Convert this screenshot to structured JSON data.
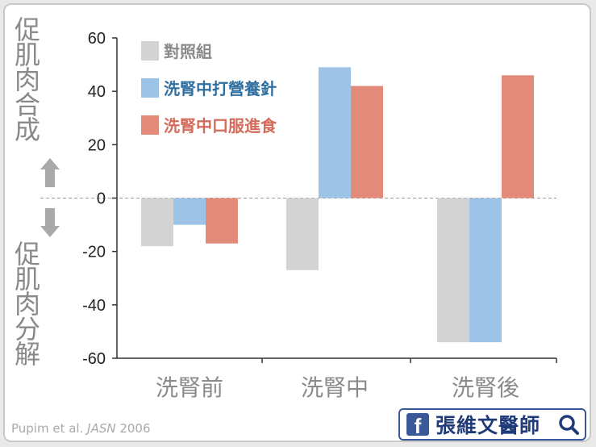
{
  "chart_data": {
    "type": "bar",
    "categories": [
      "洗腎前",
      "洗腎中",
      "洗腎後"
    ],
    "series": [
      {
        "name": "對照組",
        "values": [
          -18,
          -27,
          -54
        ],
        "color": "#d3d3d3"
      },
      {
        "name": "洗腎中打營養針",
        "values": [
          -10,
          49,
          -54
        ],
        "color": "#9dc3e6"
      },
      {
        "name": "洗腎中口服進食",
        "values": [
          -17,
          42,
          46
        ],
        "color": "#e38b7b"
      }
    ],
    "ylim": [
      -60,
      60
    ],
    "yticks": [
      60,
      40,
      20,
      0,
      -20,
      -40,
      -60
    ],
    "ylabel_top": "促肌肉合成",
    "ylabel_bottom": "促肌肉分解",
    "legend_position": "top-left",
    "zero_line": "dashed"
  },
  "source": {
    "authors": "Pupim et al. ",
    "journal": "JASN",
    "year": " 2006"
  },
  "badge": {
    "icon": "f",
    "text": "張維文醫師"
  },
  "colors": {
    "legend_text_1": "#8a8a8a",
    "legend_text_2": "#2f6f9f",
    "legend_text_3": "#d46a5a",
    "axis": "#333333"
  }
}
